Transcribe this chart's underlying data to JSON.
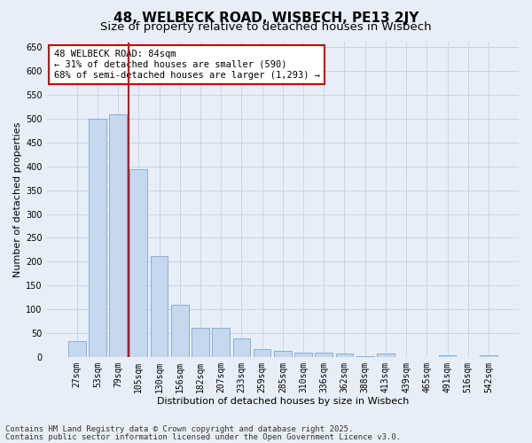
{
  "title": "48, WELBECK ROAD, WISBECH, PE13 2JY",
  "subtitle": "Size of property relative to detached houses in Wisbech",
  "xlabel": "Distribution of detached houses by size in Wisbech",
  "ylabel": "Number of detached properties",
  "categories": [
    "27sqm",
    "53sqm",
    "79sqm",
    "105sqm",
    "130sqm",
    "156sqm",
    "182sqm",
    "207sqm",
    "233sqm",
    "259sqm",
    "285sqm",
    "310sqm",
    "336sqm",
    "362sqm",
    "388sqm",
    "413sqm",
    "439sqm",
    "465sqm",
    "491sqm",
    "516sqm",
    "542sqm"
  ],
  "values": [
    33,
    499,
    509,
    394,
    211,
    110,
    62,
    62,
    40,
    17,
    14,
    9,
    9,
    8,
    2,
    7,
    1,
    1,
    4,
    1,
    4
  ],
  "bar_color": "#c5d8ee",
  "bar_edge_color": "#8aafd4",
  "grid_color": "#c8d4e8",
  "background_color": "#e8eef8",
  "vline_x": 2.5,
  "vline_color": "#cc0000",
  "annotation_text": "48 WELBECK ROAD: 84sqm\n← 31% of detached houses are smaller (590)\n68% of semi-detached houses are larger (1,293) →",
  "annotation_box_facecolor": "#ffffff",
  "annotation_box_edge": "#cc0000",
  "ylim": [
    0,
    660
  ],
  "yticks": [
    0,
    50,
    100,
    150,
    200,
    250,
    300,
    350,
    400,
    450,
    500,
    550,
    600,
    650
  ],
  "footer_line1": "Contains HM Land Registry data © Crown copyright and database right 2025.",
  "footer_line2": "Contains public sector information licensed under the Open Government Licence v3.0.",
  "title_fontsize": 11,
  "subtitle_fontsize": 9.5,
  "axis_label_fontsize": 8,
  "tick_fontsize": 7,
  "annotation_fontsize": 7.5,
  "footer_fontsize": 6.5
}
